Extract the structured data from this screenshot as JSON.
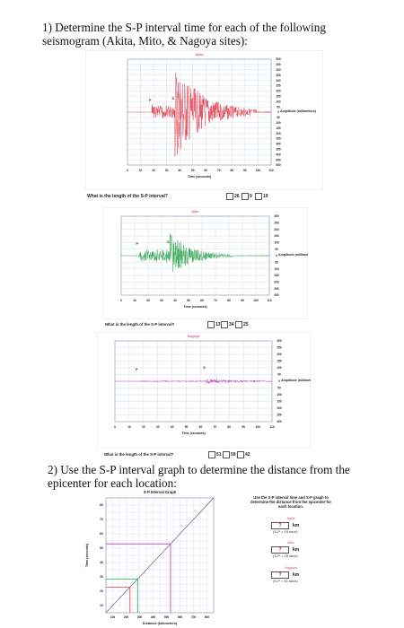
{
  "question1": {
    "line1": "1) Determine the S-P interval time for each of the following",
    "line2": "seismogram (Akita, Mito, & Nagoya sites):"
  },
  "seismograms": [
    {
      "station": "Akita",
      "trace_color": "#e0394a",
      "x_ticks": [
        "0",
        "10",
        "20",
        "30",
        "40",
        "50",
        "60",
        "70",
        "80",
        "90",
        "100",
        "110"
      ],
      "x_label": "Time (seconds)",
      "y_ticks": [
        "500",
        "450",
        "400",
        "350",
        "300",
        "250",
        "200",
        "150",
        "100",
        "50",
        "0",
        "50",
        "100",
        "150",
        "200",
        "250",
        "300",
        "350",
        "400",
        "450",
        "500"
      ],
      "y_label": "Amplitude (millimeters)",
      "p_label": "P",
      "s_label": "S",
      "question": "What is the length of the S-P interval?",
      "choices": [
        "26",
        "9",
        "19"
      ]
    },
    {
      "station": "Mito",
      "trace_color": "#2aa24a",
      "x_ticks": [
        "0",
        "10",
        "20",
        "30",
        "40",
        "50",
        "60",
        "70",
        "80",
        "90",
        "100",
        "110"
      ],
      "x_label": "Time (seconds)",
      "y_ticks": [
        "300",
        "250",
        "200",
        "150",
        "100",
        "50",
        "0",
        "50",
        "100",
        "150",
        "200",
        "250",
        "300"
      ],
      "y_label": "Amplitude (millimeters)",
      "p_label": "P",
      "s_label": "S",
      "question": "What is the length of the S-P interval?",
      "choices": [
        "13",
        "34",
        "25"
      ]
    },
    {
      "station": "Nagoya",
      "trace_color": "#b03ab8",
      "x_ticks": [
        "0",
        "10",
        "20",
        "30",
        "40",
        "50",
        "60",
        "70",
        "80",
        "90",
        "100",
        "110"
      ],
      "x_label": "Time (seconds)",
      "y_ticks": [
        "300",
        "250",
        "200",
        "150",
        "100",
        "50",
        "0",
        "50",
        "100",
        "150",
        "200",
        "250",
        "300"
      ],
      "y_label": "Amplitude (millimeters)",
      "p_label": "P",
      "s_label": "S",
      "question": "What is the length of the S-P interval?",
      "choices": [
        "51",
        "59",
        "42"
      ]
    }
  ],
  "question2": {
    "line1": "2) Use the S-P interval graph to determine the distance from the",
    "line2": "epicenter for each location:"
  },
  "sp_graph": {
    "title": "S-P Interval Graph",
    "y_label": "Time (seconds)",
    "x_label": "Distance (kilometers)",
    "y_ticks": [
      "80",
      "70",
      "60",
      "50",
      "40",
      "30",
      "20",
      "10"
    ],
    "x_ticks": [
      "100",
      "200",
      "300",
      "400",
      "500",
      "600",
      "700",
      "800"
    ],
    "instructions": "Use the S-P interval time and S-P graph to determine the distance from the epicenter for each location.",
    "locations": [
      {
        "name": "Akita",
        "q": "?",
        "unit": "km",
        "interval": "(S-P = 19 secs)",
        "color": "#e0394a"
      },
      {
        "name": "Mito",
        "q": "?",
        "unit": "km",
        "interval": "(S-P = 25 secs)",
        "color": "#2aa24a"
      },
      {
        "name": "Nagoya",
        "q": "?",
        "unit": "km",
        "interval": "(S-P = 51 secs)",
        "color": "#b03ab8"
      }
    ]
  }
}
